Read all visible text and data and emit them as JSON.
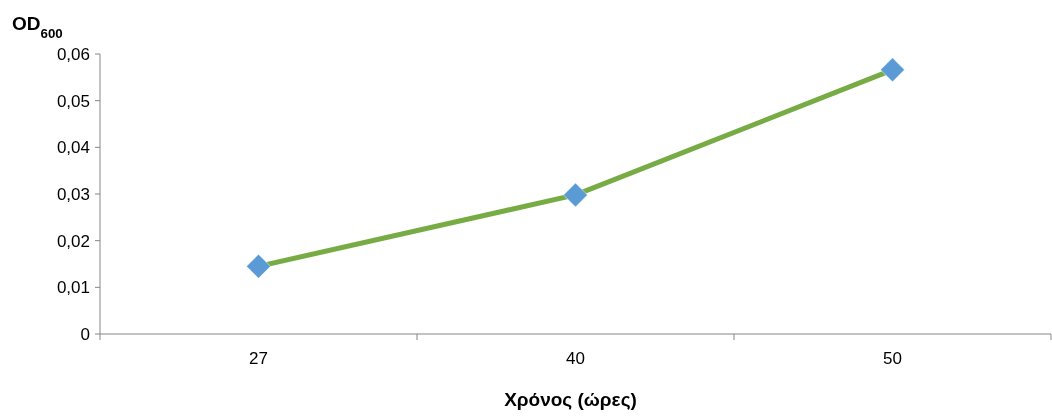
{
  "chart_data": {
    "type": "line",
    "xlabel": "Χρόνος (ώρες)",
    "ylabel": "OD$_{600}$",
    "categories": [
      "27",
      "40",
      "50"
    ],
    "series": [
      {
        "color": "#77ab43",
        "colors": [
          "#5b9bd5",
          "#5b9bd5",
          "#5b9bd5"
        ],
        "values": [
          0.0145,
          0.0298,
          0.0566
        ]
      }
    ],
    "ylim": [
      0,
      0.06
    ],
    "yticks": [
      0,
      {
        "value": 0.01,
        "label": "0,01"
      },
      {
        "value": 0.02,
        "label": "0,02"
      },
      {
        "value": 0.03,
        "label": "0,03"
      },
      {
        "value": 0.04,
        "label": "0,04"
      },
      {
        "value": 0.05,
        "label": "0,05"
      },
      {
        "value": 0.06,
        "label": "0,06"
      }
    ],
    "marker": "diamond",
    "line_style": "solid",
    "grid": false
  }
}
